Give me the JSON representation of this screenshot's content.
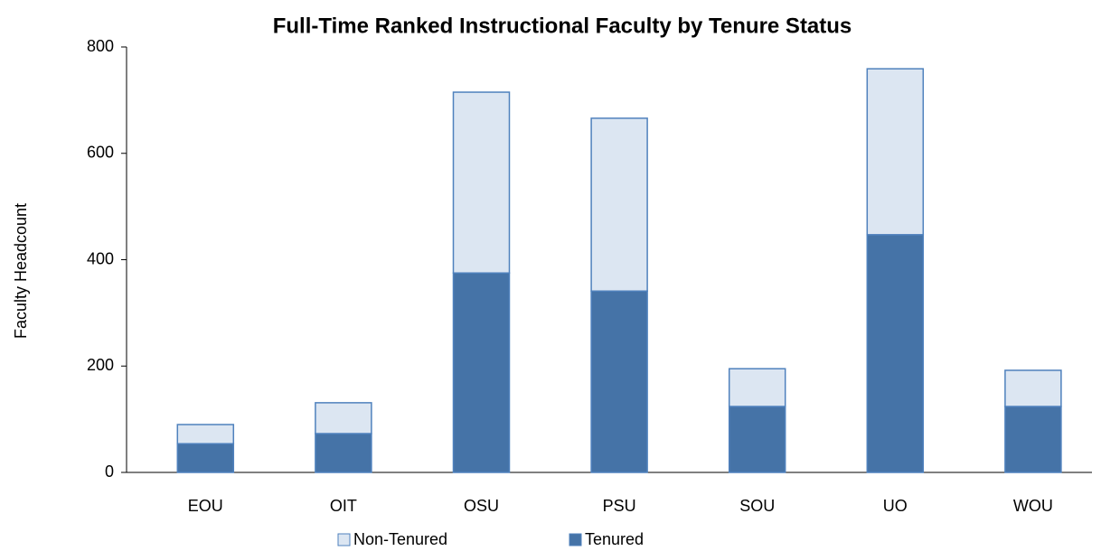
{
  "chart_data": {
    "type": "stacked_bar",
    "title": "Full-Time Ranked Instructional Faculty by Tenure Status",
    "y_label": "Faculty Headcount",
    "categories": [
      "EOU",
      "OIT",
      "OSU",
      "PSU",
      "SOU",
      "UO",
      "WOU"
    ],
    "series": [
      {
        "name": "Non-Tenured",
        "color": "#dce6f2",
        "values": [
          36,
          58,
          340,
          325,
          71,
          312,
          68
        ]
      },
      {
        "name": "Tenured",
        "color": "#4573a7",
        "values": [
          54,
          73,
          375,
          341,
          124,
          447,
          124
        ]
      }
    ],
    "ylim": [
      0,
      800
    ],
    "yticks": [
      0,
      200,
      400,
      600,
      800
    ],
    "legend": "bottom"
  }
}
